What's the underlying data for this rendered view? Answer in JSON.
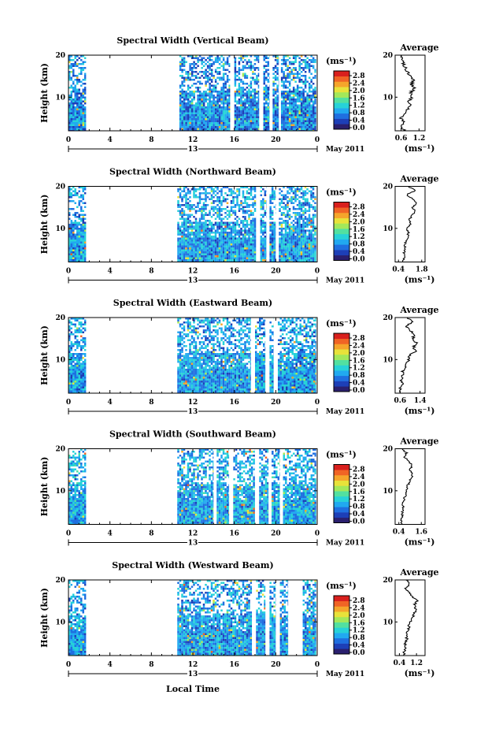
{
  "figure": {
    "time_axis_label": "Local Time",
    "date_label": "May 2011",
    "day_marker": "13",
    "height_axis_label": "Height (km)",
    "colorbar_unit": "(ms⁻¹)",
    "average_title": "Average",
    "average_unit": "(ms⁻¹)"
  },
  "colormap": [
    "#2a1f6e",
    "#1d3fb7",
    "#1f6fe0",
    "#21a9f0",
    "#27d2d8",
    "#52e0a0",
    "#a3e85a",
    "#e8e23a",
    "#f5a52b",
    "#f06425",
    "#d9201d"
  ],
  "chart_data": [
    {
      "type": "heatmap",
      "title": "Spectral Width (Vertical Beam)",
      "xlim": [
        0,
        24
      ],
      "x_ticks": [
        "0",
        "4",
        "8",
        "12",
        "16",
        "20",
        "0"
      ],
      "ylim": [
        2,
        20
      ],
      "y_ticks": [
        "10",
        "20"
      ],
      "colorbar_ticks": [
        "2.8",
        "2.4",
        "2.0",
        "1.6",
        "1.2",
        "0.8",
        "0.4",
        "0.0"
      ],
      "data_time_windows_lt": [
        [
          0.0,
          1.7
        ],
        [
          10.7,
          15.6
        ],
        [
          16.0,
          18.4
        ],
        [
          18.8,
          19.4
        ],
        [
          19.7,
          20.3
        ],
        [
          20.5,
          23.9
        ]
      ],
      "top_km": 20,
      "mean_width_ms": 0.7,
      "average_profile": {
        "height_km": [
          2,
          3,
          4,
          5,
          6,
          7,
          8,
          9,
          10,
          11,
          12,
          13,
          14,
          15,
          16,
          17,
          18,
          19,
          20
        ],
        "width_ms": [
          0.7,
          0.62,
          0.68,
          0.6,
          0.72,
          0.8,
          0.88,
          0.85,
          0.95,
          0.9,
          1.05,
          0.95,
          1.02,
          0.9,
          0.8,
          0.75,
          0.68,
          0.6,
          0.58
        ],
        "xlim": [
          0.4,
          1.4
        ],
        "x_ticks": [
          "0.6",
          "1.2"
        ]
      }
    },
    {
      "type": "heatmap",
      "title": "Spectral Width (Northward Beam)",
      "xlim": [
        0,
        24
      ],
      "x_ticks": [
        "0",
        "4",
        "8",
        "12",
        "16",
        "20",
        "0"
      ],
      "ylim": [
        2,
        20
      ],
      "y_ticks": [
        "10",
        "20"
      ],
      "colorbar_ticks": [
        "2.8",
        "2.4",
        "2.0",
        "1.6",
        "1.2",
        "0.8",
        "0.4",
        "0.0"
      ],
      "data_time_windows_lt": [
        [
          0.0,
          1.7
        ],
        [
          10.5,
          18.1
        ],
        [
          18.5,
          19.1
        ],
        [
          19.4,
          20.0
        ],
        [
          20.3,
          23.9
        ]
      ],
      "top_km": 20,
      "mean_width_ms": 0.8,
      "average_profile": {
        "height_km": [
          2,
          3,
          4,
          5,
          6,
          7,
          8,
          9,
          10,
          11,
          12,
          13,
          14,
          15,
          16,
          17,
          18,
          19,
          20
        ],
        "width_ms": [
          0.7,
          0.75,
          0.72,
          0.8,
          0.78,
          0.85,
          0.95,
          1.0,
          0.9,
          1.1,
          1.05,
          1.2,
          1.4,
          1.25,
          1.5,
          1.3,
          0.9,
          1.4,
          1.0
        ],
        "xlim": [
          0.2,
          2.0
        ],
        "x_ticks": [
          "0.4",
          "1.8"
        ]
      }
    },
    {
      "type": "heatmap",
      "title": "Spectral Width (Eastward Beam)",
      "xlim": [
        0,
        24
      ],
      "x_ticks": [
        "0",
        "4",
        "8",
        "12",
        "16",
        "20",
        "0"
      ],
      "ylim": [
        2,
        20
      ],
      "y_ticks": [
        "10",
        "20"
      ],
      "colorbar_ticks": [
        "2.8",
        "2.4",
        "2.0",
        "1.6",
        "1.2",
        "0.8",
        "0.4",
        "0.0"
      ],
      "data_time_windows_lt": [
        [
          0.0,
          1.7
        ],
        [
          10.5,
          17.6
        ],
        [
          18.0,
          19.0
        ],
        [
          19.4,
          19.8
        ],
        [
          20.2,
          23.9
        ]
      ],
      "top_km": 20,
      "mean_width_ms": 0.8,
      "average_profile": {
        "height_km": [
          2,
          3,
          4,
          5,
          6,
          7,
          8,
          9,
          10,
          11,
          12,
          13,
          14,
          15,
          16,
          17,
          18,
          19,
          20
        ],
        "width_ms": [
          0.65,
          0.6,
          0.7,
          0.65,
          0.72,
          0.7,
          0.78,
          0.85,
          0.95,
          1.0,
          1.2,
          1.15,
          1.25,
          1.1,
          1.2,
          1.0,
          0.85,
          1.1,
          0.9
        ],
        "xlim": [
          0.4,
          1.6
        ],
        "x_ticks": [
          "0.6",
          "1.4"
        ]
      }
    },
    {
      "type": "heatmap",
      "title": "Spectral Width (Southward Beam)",
      "xlim": [
        0,
        24
      ],
      "x_ticks": [
        "0",
        "4",
        "8",
        "12",
        "16",
        "20",
        "0"
      ],
      "ylim": [
        2,
        20
      ],
      "y_ticks": [
        "10",
        "20"
      ],
      "colorbar_ticks": [
        "2.8",
        "2.4",
        "2.0",
        "1.6",
        "1.2",
        "0.8",
        "0.4",
        "0.0"
      ],
      "data_time_windows_lt": [
        [
          0.0,
          1.7
        ],
        [
          10.5,
          14.0
        ],
        [
          14.3,
          15.5
        ],
        [
          15.9,
          18.0
        ],
        [
          18.4,
          19.3
        ],
        [
          19.6,
          20.4
        ],
        [
          20.7,
          23.9
        ]
      ],
      "top_km": 20,
      "mean_width_ms": 0.85,
      "average_profile": {
        "height_km": [
          2,
          3,
          4,
          5,
          6,
          7,
          8,
          9,
          10,
          11,
          12,
          13,
          14,
          15,
          16,
          17,
          18,
          19,
          20
        ],
        "width_ms": [
          0.55,
          0.5,
          0.6,
          0.58,
          0.65,
          0.62,
          0.7,
          0.75,
          0.8,
          0.85,
          0.95,
          1.05,
          1.15,
          1.0,
          1.1,
          0.9,
          0.7,
          0.8,
          0.6
        ],
        "xlim": [
          0.2,
          1.8
        ],
        "x_ticks": [
          "0.4",
          "1.6"
        ]
      }
    },
    {
      "type": "heatmap",
      "title": "Spectral Width (Westward Beam)",
      "xlim": [
        0,
        24
      ],
      "x_ticks": [
        "0",
        "4",
        "8",
        "12",
        "16",
        "20",
        "0"
      ],
      "ylim": [
        2,
        20
      ],
      "y_ticks": [
        "10",
        "20"
      ],
      "colorbar_ticks": [
        "2.8",
        "2.4",
        "2.0",
        "1.6",
        "1.2",
        "0.8",
        "0.4",
        "0.0"
      ],
      "data_time_windows_lt": [
        [
          0.0,
          1.7
        ],
        [
          10.5,
          17.7
        ],
        [
          18.1,
          19.0
        ],
        [
          19.4,
          20.0
        ],
        [
          20.4,
          21.2
        ],
        [
          22.6,
          23.9
        ]
      ],
      "top_km": 20,
      "mean_width_ms": 0.8,
      "average_profile": {
        "height_km": [
          2,
          3,
          4,
          5,
          6,
          7,
          8,
          9,
          10,
          11,
          12,
          13,
          14,
          15,
          16,
          17,
          18,
          19,
          20
        ],
        "width_ms": [
          0.6,
          0.62,
          0.7,
          0.65,
          0.75,
          0.72,
          0.8,
          0.85,
          0.9,
          1.0,
          1.1,
          1.2,
          1.1,
          1.25,
          1.0,
          0.85,
          0.7,
          0.9,
          0.7
        ],
        "xlim": [
          0.2,
          1.6
        ],
        "x_ticks": [
          "0.4",
          "1.2"
        ]
      }
    }
  ]
}
